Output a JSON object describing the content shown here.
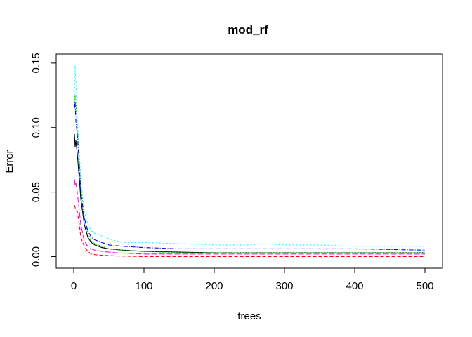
{
  "chart_data": {
    "type": "line",
    "title": "mod_rf",
    "xlabel": "trees",
    "ylabel": "Error",
    "xlim": [
      -25,
      525
    ],
    "ylim": [
      -0.009,
      0.157
    ],
    "x_ticks": [
      0,
      100,
      200,
      300,
      400,
      500
    ],
    "y_ticks": [
      0.0,
      0.05,
      0.1,
      0.15
    ],
    "x_tick_labels": [
      "0",
      "100",
      "200",
      "300",
      "400",
      "500"
    ],
    "y_tick_labels": [
      "0.00",
      "0.05",
      "0.10",
      "0.15"
    ],
    "grid": false,
    "legend": "none",
    "series": [
      {
        "color": "#000000",
        "dash": "",
        "points": [
          [
            1,
            0.095
          ],
          [
            2,
            0.085
          ],
          [
            3,
            0.09
          ],
          [
            5,
            0.08
          ],
          [
            8,
            0.06
          ],
          [
            10,
            0.045
          ],
          [
            15,
            0.025
          ],
          [
            20,
            0.015
          ],
          [
            25,
            0.011
          ],
          [
            30,
            0.009
          ],
          [
            40,
            0.007
          ],
          [
            50,
            0.006
          ],
          [
            70,
            0.005
          ],
          [
            100,
            0.004
          ],
          [
            150,
            0.0035
          ],
          [
            200,
            0.003
          ],
          [
            300,
            0.003
          ],
          [
            400,
            0.003
          ],
          [
            500,
            0.003
          ]
        ]
      },
      {
        "color": "#ff0000",
        "dash": "5,3",
        "points": [
          [
            1,
            0.04
          ],
          [
            2,
            0.038
          ],
          [
            3,
            0.036
          ],
          [
            5,
            0.035
          ],
          [
            8,
            0.025
          ],
          [
            10,
            0.015
          ],
          [
            15,
            0.008
          ],
          [
            20,
            0.004
          ],
          [
            25,
            0.002
          ],
          [
            30,
            0.0015
          ],
          [
            40,
            0.001
          ],
          [
            60,
            0.0005
          ],
          [
            100,
            0.0
          ],
          [
            200,
            0.0
          ],
          [
            300,
            0.0
          ],
          [
            400,
            0.0
          ],
          [
            500,
            0.0
          ]
        ]
      },
      {
        "color": "#00cc00",
        "dash": "2,2",
        "points": [
          [
            1,
            0.115
          ],
          [
            2,
            0.125
          ],
          [
            3,
            0.12
          ],
          [
            5,
            0.1
          ],
          [
            8,
            0.075
          ],
          [
            10,
            0.055
          ],
          [
            15,
            0.03
          ],
          [
            20,
            0.018
          ],
          [
            25,
            0.012
          ],
          [
            30,
            0.01
          ],
          [
            40,
            0.008
          ],
          [
            50,
            0.006
          ],
          [
            70,
            0.005
          ],
          [
            100,
            0.004
          ],
          [
            150,
            0.003
          ],
          [
            200,
            0.003
          ],
          [
            300,
            0.003
          ],
          [
            400,
            0.003
          ],
          [
            500,
            0.003
          ]
        ]
      },
      {
        "color": "#0000ff",
        "dash": "6,2,1,2",
        "points": [
          [
            1,
            0.115
          ],
          [
            2,
            0.12
          ],
          [
            3,
            0.105
          ],
          [
            5,
            0.095
          ],
          [
            8,
            0.07
          ],
          [
            10,
            0.05
          ],
          [
            15,
            0.03
          ],
          [
            20,
            0.02
          ],
          [
            25,
            0.015
          ],
          [
            30,
            0.013
          ],
          [
            40,
            0.011
          ],
          [
            50,
            0.009
          ],
          [
            70,
            0.008
          ],
          [
            100,
            0.007
          ],
          [
            150,
            0.006
          ],
          [
            200,
            0.006
          ],
          [
            300,
            0.006
          ],
          [
            400,
            0.006
          ],
          [
            500,
            0.005
          ]
        ]
      },
      {
        "color": "#00ffff",
        "dash": "2,3",
        "points": [
          [
            1,
            0.125
          ],
          [
            2,
            0.148
          ],
          [
            3,
            0.135
          ],
          [
            5,
            0.11
          ],
          [
            8,
            0.08
          ],
          [
            10,
            0.06
          ],
          [
            15,
            0.035
          ],
          [
            20,
            0.025
          ],
          [
            25,
            0.02
          ],
          [
            30,
            0.018
          ],
          [
            40,
            0.016
          ],
          [
            50,
            0.014
          ],
          [
            60,
            0.012
          ],
          [
            70,
            0.011
          ],
          [
            100,
            0.011
          ],
          [
            150,
            0.01
          ],
          [
            200,
            0.009
          ],
          [
            250,
            0.009
          ],
          [
            270,
            0.01
          ],
          [
            300,
            0.009
          ],
          [
            350,
            0.009
          ],
          [
            400,
            0.008
          ],
          [
            450,
            0.008
          ],
          [
            500,
            0.008
          ]
        ]
      },
      {
        "color": "#ff00ff",
        "dash": "8,3",
        "points": [
          [
            1,
            0.06
          ],
          [
            2,
            0.055
          ],
          [
            3,
            0.057
          ],
          [
            5,
            0.05
          ],
          [
            8,
            0.035
          ],
          [
            10,
            0.025
          ],
          [
            15,
            0.012
          ],
          [
            20,
            0.008
          ],
          [
            25,
            0.006
          ],
          [
            30,
            0.005
          ],
          [
            40,
            0.004
          ],
          [
            60,
            0.003
          ],
          [
            100,
            0.002
          ],
          [
            200,
            0.002
          ],
          [
            300,
            0.002
          ],
          [
            400,
            0.002
          ],
          [
            500,
            0.002
          ]
        ]
      }
    ]
  }
}
